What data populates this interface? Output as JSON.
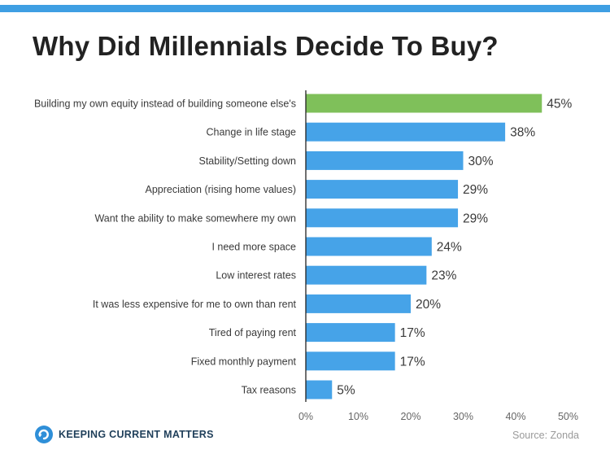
{
  "title": "Why Did Millennials Decide To Buy?",
  "colors": {
    "band": "#3f9fe3",
    "bar": "#46a3e8",
    "highlight": "#7fc05a",
    "axis": "#222222"
  },
  "chart_data": {
    "type": "bar",
    "orientation": "horizontal",
    "categories": [
      "Building my own equity instead of building someone else's",
      "Change in life stage",
      "Stability/Setting down",
      "Appreciation (rising home values)",
      "Want the ability to make somewhere my own",
      "I need more space",
      "Low interest rates",
      "It was less expensive for me to own than rent",
      "Tired of paying rent",
      "Fixed monthly payment",
      "Tax reasons"
    ],
    "values": [
      45,
      38,
      30,
      29,
      29,
      24,
      23,
      20,
      17,
      17,
      5
    ],
    "value_labels": [
      "45%",
      "38%",
      "30%",
      "29%",
      "29%",
      "24%",
      "23%",
      "20%",
      "17%",
      "17%",
      "5%"
    ],
    "highlight_index": 0,
    "xlim": [
      0,
      50
    ],
    "xticks": [
      0,
      10,
      20,
      30,
      40,
      50
    ],
    "xtick_labels": [
      "0%",
      "10%",
      "20%",
      "30%",
      "40%",
      "50%"
    ],
    "grid": false
  },
  "footer": {
    "logo_icon": "circular-arrow-icon",
    "logo_text": "Keeping Current Matters",
    "source": "Source: Zonda"
  }
}
